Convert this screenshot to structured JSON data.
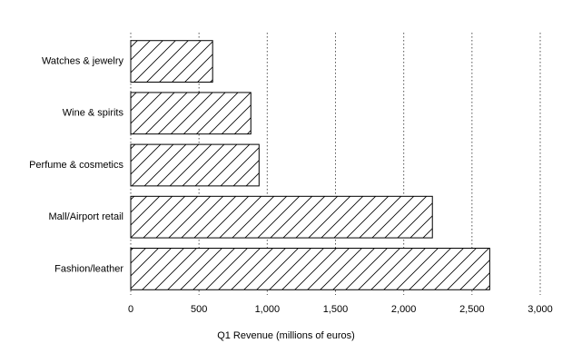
{
  "chart_data": {
    "type": "bar",
    "orientation": "horizontal",
    "x_label": "Q1 Revenue (millions of euros)",
    "categories": [
      "Watches & jewelry",
      "Wine & spirits",
      "Perfume & cosmetics",
      "Mall/Airport retail",
      "Fashion/leather"
    ],
    "values": [
      600,
      880,
      940,
      2210,
      2630
    ],
    "color": "#000000",
    "hatch": "/",
    "xlim": [
      0,
      3000
    ],
    "xticks": [
      0,
      500,
      {
        "value": 1000,
        "label": "1,000"
      },
      {
        "value": 1500,
        "label": "1,500"
      },
      {
        "value": 2000,
        "label": "2,000"
      },
      {
        "value": 2500,
        "label": "2,500"
      },
      {
        "value": 3000,
        "label": "3,000"
      }
    ],
    "grid": true
  }
}
